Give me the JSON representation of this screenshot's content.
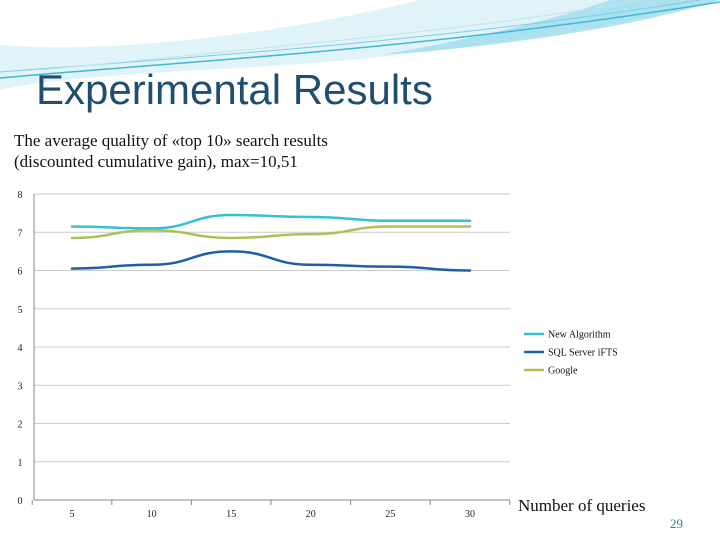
{
  "slide": {
    "title": "Experimental Results",
    "subtitle_line1": "The average quality of «top 10» search results",
    "subtitle_line2": "(discounted cumulative gain), max=10,51",
    "page_number": "29"
  },
  "colors": {
    "title": "#1f4e6e",
    "gridline": "#cccccc",
    "axis": "#888888",
    "deco_wave": "#3fb7d6"
  },
  "chart_data": {
    "type": "line",
    "x": [
      5,
      10,
      15,
      20,
      25,
      30
    ],
    "x_tick_labels": [
      "5",
      "10",
      "15",
      "20",
      "25",
      "30"
    ],
    "xlabel": "Number of queries",
    "ylabel": "",
    "ylim": [
      0,
      8
    ],
    "y_ticks": [
      0,
      1,
      2,
      3,
      4,
      5,
      6,
      7,
      8
    ],
    "y_tick_labels": [
      "0",
      "1",
      "2",
      "3",
      "4",
      "5",
      "6",
      "7",
      "8"
    ],
    "grid": "horizontal",
    "legend_position": "right",
    "series": [
      {
        "name": "New Algorithm",
        "color": "#36c0d6",
        "values": [
          7.15,
          7.1,
          7.45,
          7.4,
          7.3,
          7.3
        ]
      },
      {
        "name": "SQL Server iFTS",
        "color": "#1f5fa8",
        "values": [
          6.05,
          6.15,
          6.5,
          6.15,
          6.1,
          6.0
        ]
      },
      {
        "name": "Google",
        "color": "#a9c35a",
        "values": [
          6.85,
          7.05,
          6.85,
          6.95,
          7.15,
          7.15
        ]
      }
    ]
  }
}
